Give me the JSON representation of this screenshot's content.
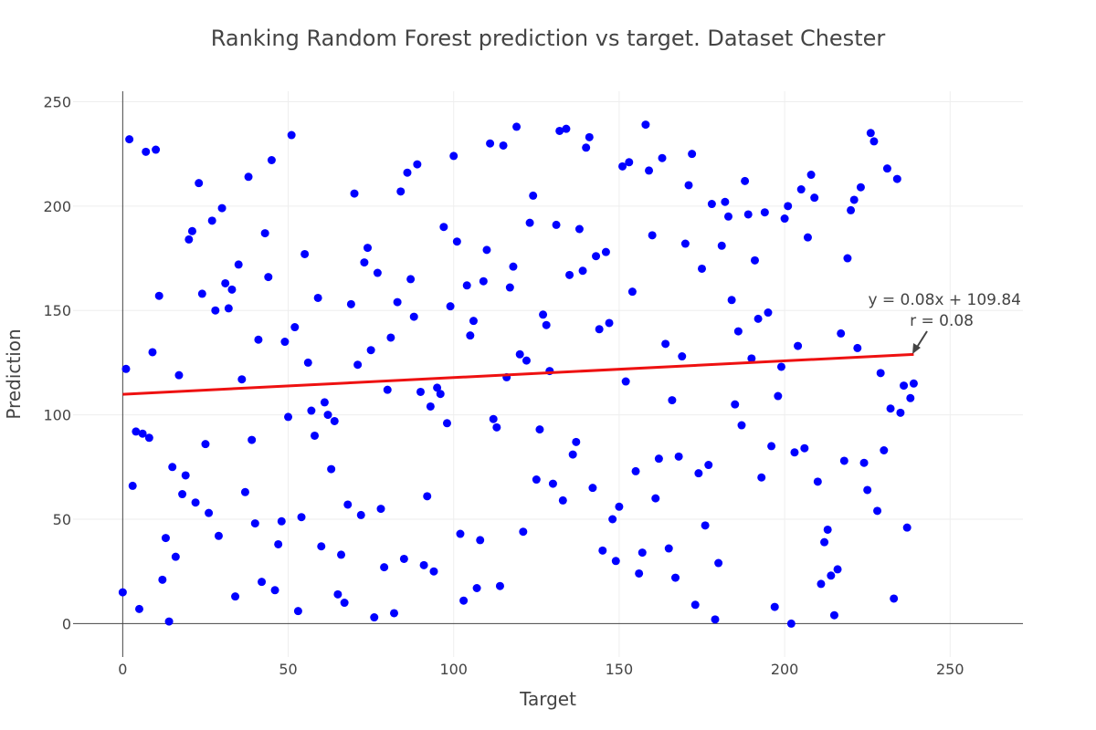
{
  "chart_data": {
    "type": "scatter",
    "title": "Ranking Random Forest prediction vs target. Dataset Chester",
    "xlabel": "Target",
    "ylabel": "Prediction",
    "xlim": [
      -15,
      272
    ],
    "ylim": [
      -16,
      255
    ],
    "xticks": [
      0,
      50,
      100,
      150,
      200,
      250
    ],
    "yticks": [
      0,
      50,
      100,
      150,
      200,
      250
    ],
    "grid": true,
    "marker_color": "#0000ff",
    "fit_color": "#ee1111",
    "points": [
      [
        0,
        15
      ],
      [
        1,
        122
      ],
      [
        2,
        232
      ],
      [
        3,
        66
      ],
      [
        4,
        92
      ],
      [
        5,
        7
      ],
      [
        6,
        91
      ],
      [
        7,
        226
      ],
      [
        8,
        89
      ],
      [
        9,
        130
      ],
      [
        10,
        227
      ],
      [
        11,
        157
      ],
      [
        12,
        21
      ],
      [
        13,
        41
      ],
      [
        14,
        1
      ],
      [
        15,
        75
      ],
      [
        16,
        32
      ],
      [
        17,
        119
      ],
      [
        18,
        62
      ],
      [
        19,
        71
      ],
      [
        20,
        184
      ],
      [
        21,
        188
      ],
      [
        22,
        58
      ],
      [
        23,
        211
      ],
      [
        24,
        158
      ],
      [
        25,
        86
      ],
      [
        26,
        53
      ],
      [
        27,
        193
      ],
      [
        28,
        150
      ],
      [
        29,
        42
      ],
      [
        30,
        199
      ],
      [
        31,
        163
      ],
      [
        32,
        151
      ],
      [
        33,
        160
      ],
      [
        34,
        13
      ],
      [
        35,
        172
      ],
      [
        36,
        117
      ],
      [
        37,
        63
      ],
      [
        38,
        214
      ],
      [
        39,
        88
      ],
      [
        40,
        48
      ],
      [
        41,
        136
      ],
      [
        42,
        20
      ],
      [
        43,
        187
      ],
      [
        44,
        166
      ],
      [
        45,
        222
      ],
      [
        46,
        16
      ],
      [
        47,
        38
      ],
      [
        48,
        49
      ],
      [
        49,
        135
      ],
      [
        50,
        99
      ],
      [
        51,
        234
      ],
      [
        52,
        142
      ],
      [
        53,
        6
      ],
      [
        54,
        51
      ],
      [
        55,
        177
      ],
      [
        56,
        125
      ],
      [
        57,
        102
      ],
      [
        58,
        90
      ],
      [
        59,
        156
      ],
      [
        60,
        37
      ],
      [
        61,
        106
      ],
      [
        62,
        100
      ],
      [
        63,
        74
      ],
      [
        64,
        97
      ],
      [
        65,
        14
      ],
      [
        66,
        33
      ],
      [
        67,
        10
      ],
      [
        68,
        57
      ],
      [
        69,
        153
      ],
      [
        70,
        206
      ],
      [
        71,
        124
      ],
      [
        72,
        52
      ],
      [
        73,
        173
      ],
      [
        74,
        180
      ],
      [
        75,
        131
      ],
      [
        76,
        3
      ],
      [
        77,
        168
      ],
      [
        78,
        55
      ],
      [
        79,
        27
      ],
      [
        80,
        112
      ],
      [
        81,
        137
      ],
      [
        82,
        5
      ],
      [
        83,
        154
      ],
      [
        84,
        207
      ],
      [
        85,
        31
      ],
      [
        86,
        216
      ],
      [
        87,
        165
      ],
      [
        88,
        147
      ],
      [
        89,
        220
      ],
      [
        90,
        111
      ],
      [
        91,
        28
      ],
      [
        92,
        61
      ],
      [
        93,
        104
      ],
      [
        94,
        25
      ],
      [
        95,
        113
      ],
      [
        96,
        110
      ],
      [
        97,
        190
      ],
      [
        98,
        96
      ],
      [
        99,
        152
      ],
      [
        100,
        224
      ],
      [
        101,
        183
      ],
      [
        102,
        43
      ],
      [
        103,
        11
      ],
      [
        104,
        162
      ],
      [
        105,
        138
      ],
      [
        106,
        145
      ],
      [
        107,
        17
      ],
      [
        108,
        40
      ],
      [
        109,
        164
      ],
      [
        110,
        179
      ],
      [
        111,
        230
      ],
      [
        112,
        98
      ],
      [
        113,
        94
      ],
      [
        114,
        18
      ],
      [
        115,
        229
      ],
      [
        116,
        118
      ],
      [
        117,
        161
      ],
      [
        118,
        171
      ],
      [
        119,
        238
      ],
      [
        120,
        129
      ],
      [
        121,
        44
      ],
      [
        122,
        126
      ],
      [
        123,
        192
      ],
      [
        124,
        205
      ],
      [
        125,
        69
      ],
      [
        126,
        93
      ],
      [
        127,
        148
      ],
      [
        128,
        143
      ],
      [
        129,
        121
      ],
      [
        130,
        67
      ],
      [
        131,
        191
      ],
      [
        132,
        236
      ],
      [
        133,
        59
      ],
      [
        134,
        237
      ],
      [
        135,
        167
      ],
      [
        136,
        81
      ],
      [
        137,
        87
      ],
      [
        138,
        189
      ],
      [
        139,
        169
      ],
      [
        140,
        228
      ],
      [
        141,
        233
      ],
      [
        142,
        65
      ],
      [
        143,
        176
      ],
      [
        144,
        141
      ],
      [
        145,
        35
      ],
      [
        146,
        178
      ],
      [
        147,
        144
      ],
      [
        148,
        50
      ],
      [
        149,
        30
      ],
      [
        150,
        56
      ],
      [
        151,
        219
      ],
      [
        152,
        116
      ],
      [
        153,
        221
      ],
      [
        154,
        159
      ],
      [
        155,
        73
      ],
      [
        156,
        24
      ],
      [
        157,
        34
      ],
      [
        158,
        239
      ],
      [
        159,
        217
      ],
      [
        160,
        186
      ],
      [
        161,
        60
      ],
      [
        162,
        79
      ],
      [
        163,
        223
      ],
      [
        164,
        134
      ],
      [
        165,
        36
      ],
      [
        166,
        107
      ],
      [
        167,
        22
      ],
      [
        168,
        80
      ],
      [
        169,
        128
      ],
      [
        170,
        182
      ],
      [
        171,
        210
      ],
      [
        172,
        225
      ],
      [
        173,
        9
      ],
      [
        174,
        72
      ],
      [
        175,
        170
      ],
      [
        176,
        47
      ],
      [
        177,
        76
      ],
      [
        178,
        201
      ],
      [
        179,
        2
      ],
      [
        180,
        29
      ],
      [
        181,
        181
      ],
      [
        182,
        202
      ],
      [
        183,
        195
      ],
      [
        184,
        155
      ],
      [
        185,
        105
      ],
      [
        186,
        140
      ],
      [
        187,
        95
      ],
      [
        188,
        212
      ],
      [
        189,
        196
      ],
      [
        190,
        127
      ],
      [
        191,
        174
      ],
      [
        192,
        146
      ],
      [
        193,
        70
      ],
      [
        194,
        197
      ],
      [
        195,
        149
      ],
      [
        196,
        85
      ],
      [
        197,
        8
      ],
      [
        198,
        109
      ],
      [
        199,
        123
      ],
      [
        200,
        194
      ],
      [
        201,
        200
      ],
      [
        202,
        0
      ],
      [
        203,
        82
      ],
      [
        204,
        133
      ],
      [
        205,
        208
      ],
      [
        206,
        84
      ],
      [
        207,
        185
      ],
      [
        208,
        215
      ],
      [
        209,
        204
      ],
      [
        210,
        68
      ],
      [
        211,
        19
      ],
      [
        212,
        39
      ],
      [
        213,
        45
      ],
      [
        214,
        23
      ],
      [
        215,
        4
      ],
      [
        216,
        26
      ],
      [
        217,
        139
      ],
      [
        218,
        78
      ],
      [
        219,
        175
      ],
      [
        220,
        198
      ],
      [
        221,
        203
      ],
      [
        222,
        132
      ],
      [
        223,
        209
      ],
      [
        224,
        77
      ],
      [
        225,
        64
      ],
      [
        226,
        235
      ],
      [
        227,
        231
      ],
      [
        228,
        54
      ],
      [
        229,
        120
      ],
      [
        230,
        83
      ],
      [
        231,
        218
      ],
      [
        232,
        103
      ],
      [
        233,
        12
      ],
      [
        234,
        213
      ],
      [
        235,
        101
      ],
      [
        236,
        114
      ],
      [
        237,
        46
      ],
      [
        238,
        108
      ],
      [
        239,
        115
      ]
    ],
    "fit": {
      "slope": 0.08,
      "intercept": 109.84,
      "x_range": [
        0,
        239
      ]
    },
    "annotations": {
      "equation": "y = 0.08x + 109.84",
      "r": "r = 0.08"
    }
  }
}
